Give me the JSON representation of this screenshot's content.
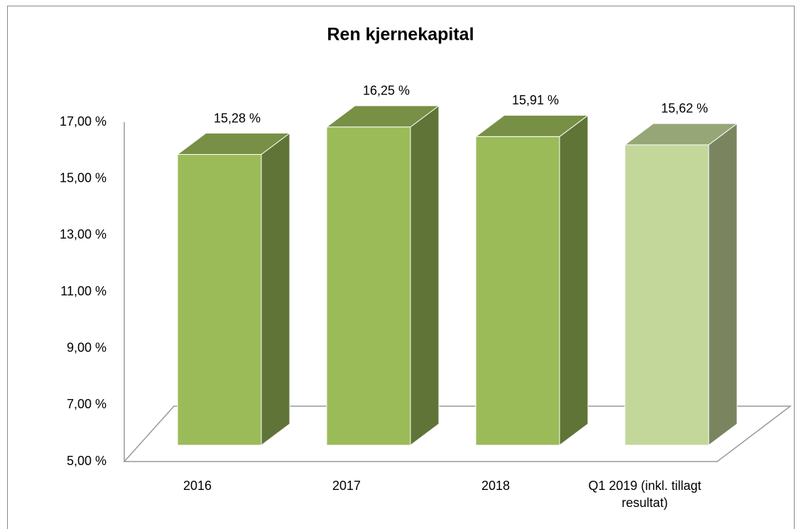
{
  "chart_data": {
    "type": "bar3d",
    "title": "Ren kjernekapital",
    "categories": [
      "2016",
      "2017",
      "2018",
      "Q1 2019 (inkl. tillagt resultat)"
    ],
    "values": [
      15.28,
      16.25,
      15.91,
      15.62
    ],
    "value_labels": [
      "15,28 %",
      "16,25 %",
      "15,91 %",
      "15,62 %"
    ],
    "colors": [
      "#9bbb59",
      "#9bbb59",
      "#9bbb59",
      "#c4d79b"
    ],
    "ylim": [
      5,
      17
    ],
    "yticks": [
      {
        "value": 5,
        "label": "5,00 %"
      },
      {
        "value": 7,
        "label": "7,00 %"
      },
      {
        "value": 9,
        "label": "9,00 %"
      },
      {
        "value": 11,
        "label": "11,00 %"
      },
      {
        "value": 13,
        "label": "13,00 %"
      },
      {
        "value": 15,
        "label": "15,00 %"
      },
      {
        "value": 17,
        "label": "17,00 %"
      }
    ],
    "grid": false
  }
}
